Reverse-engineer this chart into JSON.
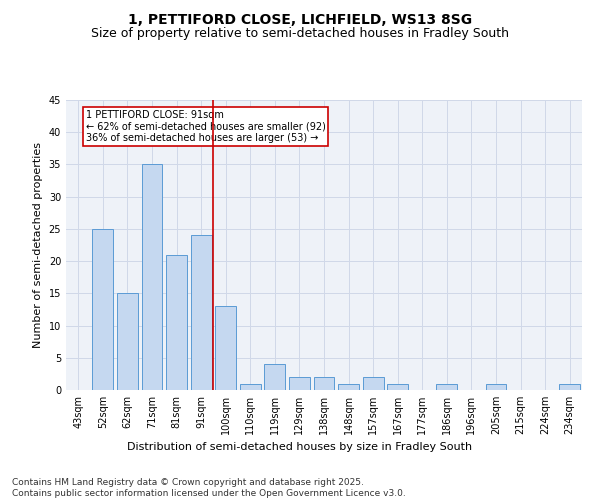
{
  "title1": "1, PETTIFORD CLOSE, LICHFIELD, WS13 8SG",
  "title2": "Size of property relative to semi-detached houses in Fradley South",
  "xlabel": "Distribution of semi-detached houses by size in Fradley South",
  "ylabel": "Number of semi-detached properties",
  "footer": "Contains HM Land Registry data © Crown copyright and database right 2025.\nContains public sector information licensed under the Open Government Licence v3.0.",
  "categories": [
    "43sqm",
    "52sqm",
    "62sqm",
    "71sqm",
    "81sqm",
    "91sqm",
    "100sqm",
    "110sqm",
    "119sqm",
    "129sqm",
    "138sqm",
    "148sqm",
    "157sqm",
    "167sqm",
    "177sqm",
    "186sqm",
    "196sqm",
    "205sqm",
    "215sqm",
    "224sqm",
    "234sqm"
  ],
  "values": [
    0,
    25,
    15,
    35,
    21,
    24,
    13,
    1,
    4,
    2,
    2,
    1,
    2,
    1,
    0,
    1,
    0,
    1,
    0,
    0,
    1
  ],
  "bar_color": "#c5d8f0",
  "bar_edge_color": "#5b9bd5",
  "highlight_line_idx": 5,
  "highlight_line_color": "#cc0000",
  "annotation_text": "1 PETTIFORD CLOSE: 91sqm\n← 62% of semi-detached houses are smaller (92)\n36% of semi-detached houses are larger (53) →",
  "annotation_box_color": "#cc0000",
  "ylim": [
    0,
    45
  ],
  "yticks": [
    0,
    5,
    10,
    15,
    20,
    25,
    30,
    35,
    40,
    45
  ],
  "grid_color": "#d0d8e8",
  "background_color": "#eef2f8",
  "title1_fontsize": 10,
  "title2_fontsize": 9,
  "axis_label_fontsize": 8,
  "tick_fontsize": 7,
  "footer_fontsize": 6.5,
  "annotation_fontsize": 7
}
